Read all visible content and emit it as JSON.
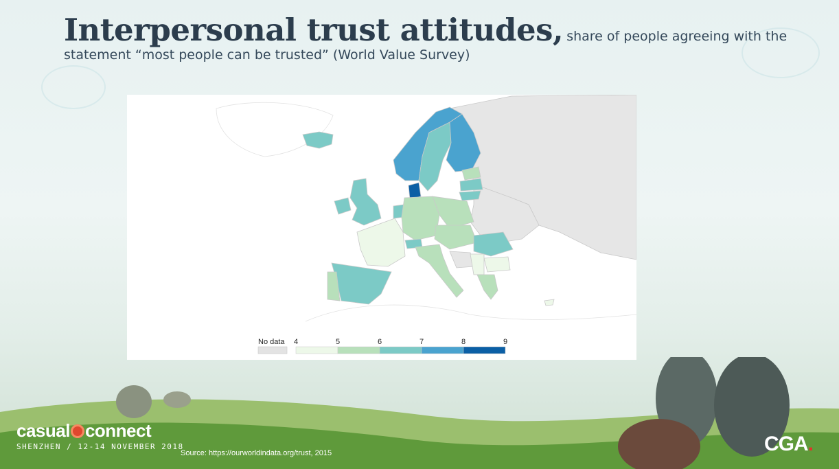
{
  "title": {
    "main": "Interpersonal trust attitudes,",
    "rest": "share of people agreeing with the statement “most people can be trusted” (World Value Survey)"
  },
  "legend": {
    "no_data_label": "No data",
    "ticks": [
      "4",
      "5",
      "6",
      "7",
      "8",
      "9"
    ],
    "no_data_color": "#e3e3e3",
    "bin_colors": [
      "#edf8e9",
      "#b8e0bb",
      "#7ccac6",
      "#4aa3cf",
      "#0b5fa5"
    ]
  },
  "map": {
    "type": "choropleth",
    "region": "Europe",
    "land_color": "#ffffff",
    "no_data_color": "#e6e6e6",
    "border_color": "#c9c9c9"
  },
  "footer": {
    "source": "Source: https://ourworldindata.org/trust, 2015",
    "logo_word_left": "casual",
    "logo_word_right": "connect",
    "logo_subtitle": "SHENZHEN / 12-14 NOVEMBER 2018",
    "cga_text": "CGA",
    "cga_dot": "."
  }
}
